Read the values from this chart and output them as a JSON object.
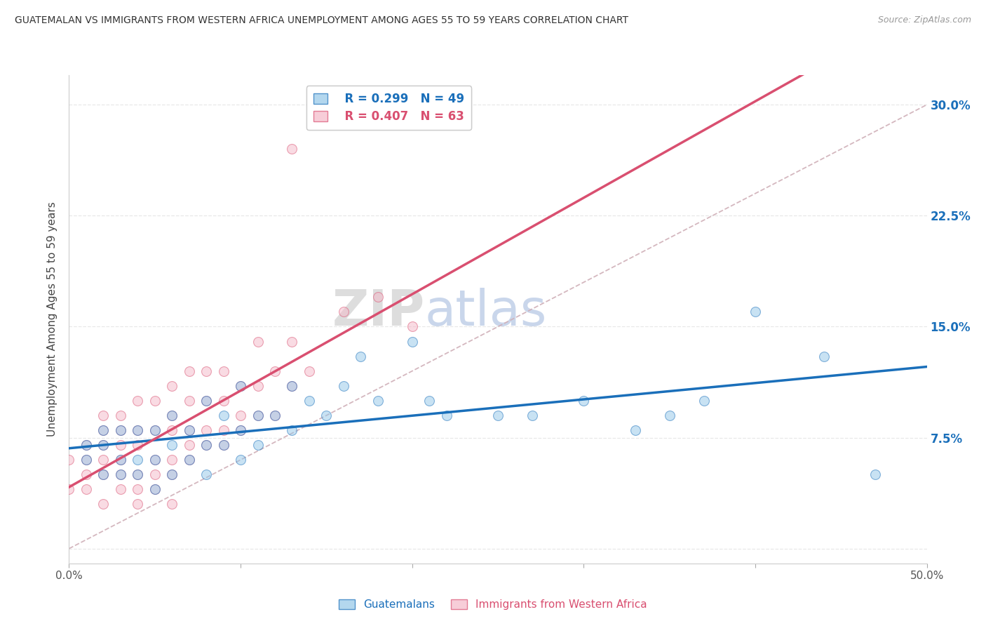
{
  "title": "GUATEMALAN VS IMMIGRANTS FROM WESTERN AFRICA UNEMPLOYMENT AMONG AGES 55 TO 59 YEARS CORRELATION CHART",
  "source": "Source: ZipAtlas.com",
  "ylabel": "Unemployment Among Ages 55 to 59 years",
  "xlim": [
    0,
    0.5
  ],
  "ylim": [
    -0.01,
    0.32
  ],
  "xticks": [
    0.0,
    0.1,
    0.2,
    0.3,
    0.4,
    0.5
  ],
  "yticks": [
    0.0,
    0.075,
    0.15,
    0.225,
    0.3
  ],
  "yticklabels": [
    "",
    "7.5%",
    "15.0%",
    "22.5%",
    "30.0%"
  ],
  "r_guatemalan": 0.299,
  "n_guatemalan": 49,
  "r_western_africa": 0.407,
  "n_western_africa": 63,
  "color_guatemalan": "#93c6e8",
  "color_western_africa": "#f4b8c8",
  "trend_guatemalan_color": "#1a6fba",
  "trend_western_africa_color": "#d94f70",
  "diag_color": "#d0b0b8",
  "watermark_zip": "ZIP",
  "watermark_atlas": "atlas",
  "guatemalan_x": [
    0.01,
    0.01,
    0.02,
    0.02,
    0.02,
    0.03,
    0.03,
    0.03,
    0.04,
    0.04,
    0.04,
    0.05,
    0.05,
    0.05,
    0.06,
    0.06,
    0.06,
    0.07,
    0.07,
    0.08,
    0.08,
    0.08,
    0.09,
    0.09,
    0.1,
    0.1,
    0.1,
    0.11,
    0.11,
    0.12,
    0.13,
    0.13,
    0.14,
    0.15,
    0.16,
    0.17,
    0.18,
    0.2,
    0.21,
    0.22,
    0.25,
    0.27,
    0.3,
    0.33,
    0.35,
    0.37,
    0.4,
    0.44,
    0.47
  ],
  "guatemalan_y": [
    0.06,
    0.07,
    0.05,
    0.07,
    0.08,
    0.05,
    0.06,
    0.08,
    0.05,
    0.06,
    0.08,
    0.04,
    0.06,
    0.08,
    0.05,
    0.07,
    0.09,
    0.06,
    0.08,
    0.05,
    0.07,
    0.1,
    0.07,
    0.09,
    0.06,
    0.08,
    0.11,
    0.07,
    0.09,
    0.09,
    0.08,
    0.11,
    0.1,
    0.09,
    0.11,
    0.13,
    0.1,
    0.14,
    0.1,
    0.09,
    0.09,
    0.09,
    0.1,
    0.08,
    0.09,
    0.1,
    0.16,
    0.13,
    0.05
  ],
  "western_africa_x": [
    0.0,
    0.0,
    0.01,
    0.01,
    0.01,
    0.01,
    0.02,
    0.02,
    0.02,
    0.02,
    0.02,
    0.02,
    0.03,
    0.03,
    0.03,
    0.03,
    0.03,
    0.03,
    0.04,
    0.04,
    0.04,
    0.04,
    0.04,
    0.05,
    0.05,
    0.05,
    0.05,
    0.06,
    0.06,
    0.06,
    0.06,
    0.06,
    0.07,
    0.07,
    0.07,
    0.07,
    0.07,
    0.08,
    0.08,
    0.08,
    0.08,
    0.09,
    0.09,
    0.09,
    0.09,
    0.1,
    0.1,
    0.1,
    0.11,
    0.11,
    0.11,
    0.12,
    0.12,
    0.13,
    0.13,
    0.14,
    0.16,
    0.18,
    0.2,
    0.13,
    0.04,
    0.05,
    0.06
  ],
  "western_africa_y": [
    0.04,
    0.06,
    0.04,
    0.05,
    0.06,
    0.07,
    0.03,
    0.05,
    0.06,
    0.07,
    0.08,
    0.09,
    0.04,
    0.05,
    0.06,
    0.07,
    0.08,
    0.09,
    0.04,
    0.05,
    0.07,
    0.08,
    0.1,
    0.05,
    0.06,
    0.08,
    0.1,
    0.05,
    0.06,
    0.08,
    0.09,
    0.11,
    0.06,
    0.07,
    0.08,
    0.1,
    0.12,
    0.07,
    0.08,
    0.1,
    0.12,
    0.07,
    0.08,
    0.1,
    0.12,
    0.08,
    0.09,
    0.11,
    0.09,
    0.11,
    0.14,
    0.09,
    0.12,
    0.11,
    0.14,
    0.12,
    0.16,
    0.17,
    0.15,
    0.27,
    0.03,
    0.04,
    0.03
  ],
  "background_color": "#ffffff",
  "grid_color": "#e8e8e8"
}
